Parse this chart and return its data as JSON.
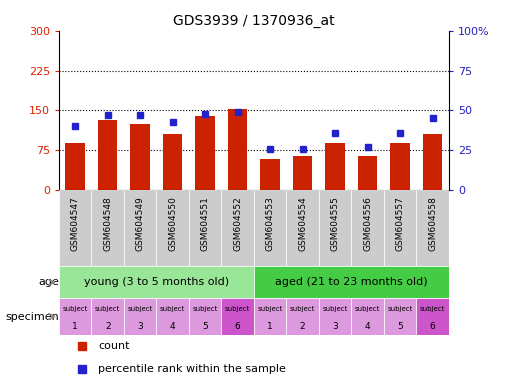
{
  "title": "GDS3939 / 1370936_at",
  "samples": [
    "GSM604547",
    "GSM604548",
    "GSM604549",
    "GSM604550",
    "GSM604551",
    "GSM604552",
    "GSM604553",
    "GSM604554",
    "GSM604555",
    "GSM604556",
    "GSM604557",
    "GSM604558"
  ],
  "counts": [
    88,
    133,
    125,
    105,
    140,
    152,
    58,
    65,
    88,
    65,
    88,
    105
  ],
  "percentiles": [
    40,
    47,
    47,
    43,
    48,
    49,
    26,
    26,
    36,
    27,
    36,
    45
  ],
  "bar_color": "#cc2200",
  "dot_color": "#2222cc",
  "left_ylim": [
    0,
    300
  ],
  "right_ylim": [
    0,
    100
  ],
  "left_yticks": [
    0,
    75,
    150,
    225,
    300
  ],
  "right_yticks": [
    0,
    25,
    50,
    75,
    100
  ],
  "right_yticklabels": [
    "0",
    "25",
    "50",
    "75",
    "100%"
  ],
  "hlines": [
    75,
    150,
    225
  ],
  "age_young_label": "young (3 to 5 months old)",
  "age_aged_label": "aged (21 to 23 months old)",
  "age_young_color": "#99e699",
  "age_aged_color": "#44cc44",
  "specimen_light_color": "#dd99dd",
  "specimen_dark_color": "#cc55cc",
  "tick_label_color": "#dd2200",
  "right_tick_color": "#2222bb",
  "background_color": "#ffffff",
  "xtick_bg_color": "#cccccc",
  "age_label_color": "#555555",
  "specimen_label_color": "#555555"
}
